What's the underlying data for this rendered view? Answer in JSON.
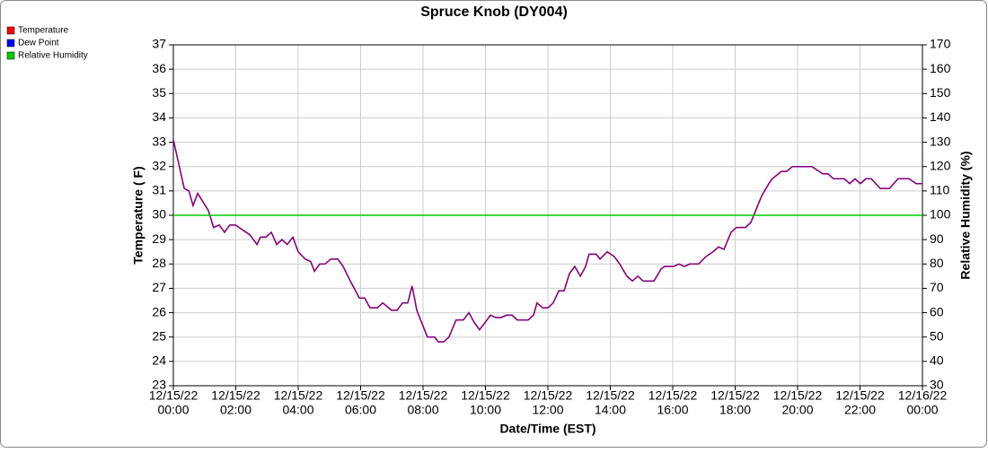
{
  "chart_data": {
    "type": "line",
    "title": "Spruce Knob (DY004)",
    "xlabel": "Date/Time (EST)",
    "ylabel": "Temperature ( F)",
    "y2label": "Relative Humidity (%)",
    "xlim": [
      0,
      24
    ],
    "xticks": [
      {
        "value": 0,
        "date": "12/15/22",
        "time": "00:00"
      },
      {
        "value": 2,
        "date": "12/15/22",
        "time": "02:00"
      },
      {
        "value": 4,
        "date": "12/15/22",
        "time": "04:00"
      },
      {
        "value": 6,
        "date": "12/15/22",
        "time": "06:00"
      },
      {
        "value": 8,
        "date": "12/15/22",
        "time": "08:00"
      },
      {
        "value": 10,
        "date": "12/15/22",
        "time": "10:00"
      },
      {
        "value": 12,
        "date": "12/15/22",
        "time": "12:00"
      },
      {
        "value": 14,
        "date": "12/15/22",
        "time": "14:00"
      },
      {
        "value": 16,
        "date": "12/15/22",
        "time": "16:00"
      },
      {
        "value": 18,
        "date": "12/15/22",
        "time": "18:00"
      },
      {
        "value": 20,
        "date": "12/15/22",
        "time": "20:00"
      },
      {
        "value": 22,
        "date": "12/15/22",
        "time": "22:00"
      },
      {
        "value": 24,
        "date": "12/16/22",
        "time": "00:00"
      }
    ],
    "ylim": [
      23,
      37
    ],
    "yticks": [
      23,
      24,
      25,
      26,
      27,
      28,
      29,
      30,
      31,
      32,
      33,
      34,
      35,
      36,
      37
    ],
    "y2lim": [
      30,
      170
    ],
    "y2ticks": [
      30,
      40,
      50,
      60,
      70,
      80,
      90,
      100,
      110,
      120,
      130,
      140,
      150,
      160,
      170
    ],
    "grid": true,
    "legend": "top-left",
    "x": [
      0,
      0.35,
      0.5,
      0.63,
      0.78,
      1.12,
      1.29,
      1.47,
      1.64,
      1.81,
      1.99,
      2.45,
      2.68,
      2.79,
      2.96,
      3.14,
      3.31,
      3.48,
      3.65,
      3.83,
      4.0,
      4.23,
      4.4,
      4.52,
      4.69,
      4.86,
      5.04,
      5.27,
      5.44,
      5.67,
      5.96,
      6.13,
      6.3,
      6.53,
      6.71,
      6.99,
      7.17,
      7.34,
      7.51,
      7.65,
      7.8,
      8.14,
      8.37,
      8.49,
      8.66,
      8.83,
      9.06,
      9.29,
      9.47,
      9.64,
      9.81,
      9.99,
      10.16,
      10.33,
      10.5,
      10.68,
      10.85,
      11.02,
      11.37,
      11.54,
      11.65,
      11.83,
      12.0,
      12.17,
      12.35,
      12.52,
      12.69,
      12.86,
      13.04,
      13.21,
      13.32,
      13.55,
      13.67,
      13.9,
      14.13,
      14.3,
      14.53,
      14.71,
      14.88,
      15.05,
      15.4,
      15.63,
      15.74,
      16.03,
      16.2,
      16.37,
      16.55,
      16.83,
      17.06,
      17.29,
      17.47,
      17.64,
      17.87,
      18.04,
      18.33,
      18.5,
      18.85,
      19.08,
      19.19,
      19.48,
      19.65,
      19.83,
      20.46,
      20.81,
      20.98,
      21.15,
      21.5,
      21.67,
      21.84,
      22.01,
      22.19,
      22.36,
      22.65,
      22.94,
      23.22,
      23.57,
      23.8,
      24
    ],
    "series": [
      {
        "name": "Temperature",
        "color": "#ff0000",
        "values": [
          33.1,
          31.1,
          31.0,
          30.4,
          30.9,
          30.2,
          29.5,
          29.6,
          29.3,
          29.6,
          29.6,
          29.2,
          28.8,
          29.1,
          29.1,
          29.3,
          28.8,
          29.0,
          28.8,
          29.1,
          28.5,
          28.2,
          28.1,
          27.7,
          28.0,
          28.0,
          28.2,
          28.2,
          27.9,
          27.3,
          26.6,
          26.6,
          26.2,
          26.2,
          26.4,
          26.1,
          26.1,
          26.4,
          26.4,
          27.1,
          26.1,
          25.0,
          25.0,
          24.8,
          24.8,
          25.0,
          25.7,
          25.7,
          26.0,
          25.6,
          25.3,
          25.6,
          25.9,
          25.8,
          25.8,
          25.9,
          25.9,
          25.7,
          25.7,
          25.9,
          26.4,
          26.2,
          26.2,
          26.4,
          26.9,
          26.9,
          27.6,
          27.9,
          27.5,
          27.9,
          28.4,
          28.4,
          28.2,
          28.5,
          28.3,
          28.0,
          27.5,
          27.3,
          27.5,
          27.3,
          27.3,
          27.8,
          27.9,
          27.9,
          28.0,
          27.9,
          28.0,
          28.0,
          28.3,
          28.5,
          28.7,
          28.6,
          29.3,
          29.5,
          29.5,
          29.7,
          30.8,
          31.3,
          31.5,
          31.8,
          31.8,
          32.0,
          32.0,
          31.7,
          31.7,
          31.5,
          31.5,
          31.3,
          31.5,
          31.3,
          31.5,
          31.5,
          31.1,
          31.1,
          31.5,
          31.5,
          31.3,
          31.3
        ]
      },
      {
        "name": "Dew Point",
        "color": "#0000ff",
        "values": [
          33.1,
          31.1,
          31.0,
          30.4,
          30.9,
          30.2,
          29.5,
          29.6,
          29.3,
          29.6,
          29.6,
          29.2,
          28.8,
          29.1,
          29.1,
          29.3,
          28.8,
          29.0,
          28.8,
          29.1,
          28.5,
          28.2,
          28.1,
          27.7,
          28.0,
          28.0,
          28.2,
          28.2,
          27.9,
          27.3,
          26.6,
          26.6,
          26.2,
          26.2,
          26.4,
          26.1,
          26.1,
          26.4,
          26.4,
          27.1,
          26.1,
          25.0,
          25.0,
          24.8,
          24.8,
          25.0,
          25.7,
          25.7,
          26.0,
          25.6,
          25.3,
          25.6,
          25.9,
          25.8,
          25.8,
          25.9,
          25.9,
          25.7,
          25.7,
          25.9,
          26.4,
          26.2,
          26.2,
          26.4,
          26.9,
          26.9,
          27.6,
          27.9,
          27.5,
          27.9,
          28.4,
          28.4,
          28.2,
          28.5,
          28.3,
          28.0,
          27.5,
          27.3,
          27.5,
          27.3,
          27.3,
          27.8,
          27.9,
          27.9,
          28.0,
          27.9,
          28.0,
          28.0,
          28.3,
          28.5,
          28.7,
          28.6,
          29.3,
          29.5,
          29.5,
          29.7,
          30.8,
          31.3,
          31.5,
          31.8,
          31.8,
          32.0,
          32.0,
          31.7,
          31.7,
          31.5,
          31.5,
          31.3,
          31.5,
          31.3,
          31.5,
          31.5,
          31.1,
          31.1,
          31.5,
          31.5,
          31.3,
          31.3
        ]
      },
      {
        "name": "Relative Humidity",
        "color": "#00cc00",
        "axis": "y2",
        "x": [
          0,
          24
        ],
        "values": [
          100,
          100
        ]
      }
    ]
  }
}
